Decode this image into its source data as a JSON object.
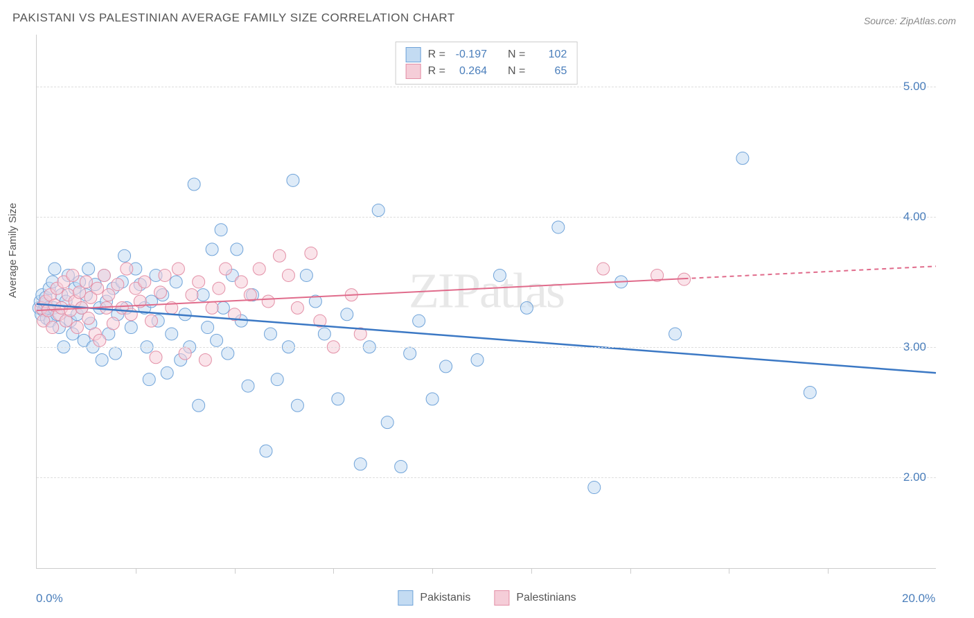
{
  "title": "PAKISTANI VS PALESTINIAN AVERAGE FAMILY SIZE CORRELATION CHART",
  "source": "Source: ZipAtlas.com",
  "watermark": "ZIPatlas",
  "ylabel": "Average Family Size",
  "chart": {
    "type": "scatter",
    "background_color": "#ffffff",
    "grid_color": "#dddddd",
    "axis_color": "#cccccc",
    "label_color": "#555555",
    "tick_label_color": "#4a7ebb",
    "title_fontsize": 17,
    "label_fontsize": 15,
    "tick_fontsize": 17,
    "marker_radius": 9,
    "marker_opacity": 0.55,
    "xlim": [
      0,
      20
    ],
    "ylim": [
      1.3,
      5.4
    ],
    "x_axis_labels": [
      {
        "x": 0,
        "label": "0.0%"
      },
      {
        "x": 20,
        "label": "20.0%"
      }
    ],
    "x_ticks_minor": [
      2.2,
      4.4,
      6.6,
      8.8,
      11.0,
      13.2,
      15.4,
      17.6
    ],
    "y_grid": [
      {
        "y": 2.0,
        "label": "2.00"
      },
      {
        "y": 3.0,
        "label": "3.00"
      },
      {
        "y": 4.0,
        "label": "4.00"
      },
      {
        "y": 5.0,
        "label": "5.00"
      }
    ],
    "series": [
      {
        "name": "Pakistanis",
        "fill": "#c3dbf2",
        "stroke": "#6fa3d9",
        "line_color": "#3b78c4",
        "r_label": "R =",
        "r_value": "-0.197",
        "n_label": "N =",
        "n_value": "102",
        "trend": {
          "x1": 0,
          "y1": 3.33,
          "x2": 20,
          "y2": 2.8,
          "dash_from_x": null
        },
        "points": [
          [
            0.05,
            3.3
          ],
          [
            0.08,
            3.35
          ],
          [
            0.1,
            3.25
          ],
          [
            0.12,
            3.4
          ],
          [
            0.15,
            3.28
          ],
          [
            0.18,
            3.33
          ],
          [
            0.2,
            3.38
          ],
          [
            0.22,
            3.22
          ],
          [
            0.25,
            3.3
          ],
          [
            0.28,
            3.45
          ],
          [
            0.3,
            3.2
          ],
          [
            0.35,
            3.5
          ],
          [
            0.38,
            3.3
          ],
          [
            0.4,
            3.6
          ],
          [
            0.45,
            3.25
          ],
          [
            0.5,
            3.15
          ],
          [
            0.55,
            3.4
          ],
          [
            0.6,
            3.0
          ],
          [
            0.65,
            3.35
          ],
          [
            0.7,
            3.55
          ],
          [
            0.75,
            3.2
          ],
          [
            0.8,
            3.1
          ],
          [
            0.85,
            3.45
          ],
          [
            0.9,
            3.25
          ],
          [
            0.95,
            3.5
          ],
          [
            1.0,
            3.3
          ],
          [
            1.05,
            3.05
          ],
          [
            1.1,
            3.4
          ],
          [
            1.15,
            3.6
          ],
          [
            1.2,
            3.18
          ],
          [
            1.25,
            3.0
          ],
          [
            1.3,
            3.48
          ],
          [
            1.4,
            3.3
          ],
          [
            1.45,
            2.9
          ],
          [
            1.5,
            3.55
          ],
          [
            1.55,
            3.35
          ],
          [
            1.6,
            3.1
          ],
          [
            1.7,
            3.45
          ],
          [
            1.75,
            2.95
          ],
          [
            1.8,
            3.25
          ],
          [
            1.9,
            3.5
          ],
          [
            1.95,
            3.7
          ],
          [
            2.0,
            3.3
          ],
          [
            2.1,
            3.15
          ],
          [
            2.2,
            3.6
          ],
          [
            2.3,
            3.48
          ],
          [
            2.4,
            3.3
          ],
          [
            2.45,
            3.0
          ],
          [
            2.5,
            2.75
          ],
          [
            2.55,
            3.35
          ],
          [
            2.65,
            3.55
          ],
          [
            2.7,
            3.2
          ],
          [
            2.8,
            3.4
          ],
          [
            2.9,
            2.8
          ],
          [
            3.0,
            3.1
          ],
          [
            3.1,
            3.5
          ],
          [
            3.2,
            2.9
          ],
          [
            3.3,
            3.25
          ],
          [
            3.4,
            3.0
          ],
          [
            3.5,
            4.25
          ],
          [
            3.6,
            2.55
          ],
          [
            3.7,
            3.4
          ],
          [
            3.8,
            3.15
          ],
          [
            3.9,
            3.75
          ],
          [
            4.0,
            3.05
          ],
          [
            4.1,
            3.9
          ],
          [
            4.15,
            3.3
          ],
          [
            4.25,
            2.95
          ],
          [
            4.35,
            3.55
          ],
          [
            4.45,
            3.75
          ],
          [
            4.55,
            3.2
          ],
          [
            4.7,
            2.7
          ],
          [
            4.8,
            3.4
          ],
          [
            5.1,
            2.2
          ],
          [
            5.2,
            3.1
          ],
          [
            5.35,
            2.75
          ],
          [
            5.6,
            3.0
          ],
          [
            5.7,
            4.28
          ],
          [
            5.8,
            2.55
          ],
          [
            6.0,
            3.55
          ],
          [
            6.2,
            3.35
          ],
          [
            6.4,
            3.1
          ],
          [
            6.7,
            2.6
          ],
          [
            6.9,
            3.25
          ],
          [
            7.2,
            2.1
          ],
          [
            7.4,
            3.0
          ],
          [
            7.6,
            4.05
          ],
          [
            7.8,
            2.42
          ],
          [
            8.1,
            2.08
          ],
          [
            8.3,
            2.95
          ],
          [
            8.5,
            3.2
          ],
          [
            8.8,
            2.6
          ],
          [
            9.1,
            2.85
          ],
          [
            9.8,
            2.9
          ],
          [
            10.3,
            3.55
          ],
          [
            10.9,
            3.3
          ],
          [
            11.6,
            3.92
          ],
          [
            12.4,
            1.92
          ],
          [
            13.0,
            3.5
          ],
          [
            14.2,
            3.1
          ],
          [
            15.7,
            4.45
          ],
          [
            17.2,
            2.65
          ]
        ]
      },
      {
        "name": "Palestinians",
        "fill": "#f5cdd8",
        "stroke": "#e38fa6",
        "line_color": "#e06b8b",
        "r_label": "R =",
        "r_value": "0.264",
        "n_label": "N =",
        "n_value": "65",
        "trend": {
          "x1": 0,
          "y1": 3.28,
          "x2": 20,
          "y2": 3.62,
          "dash_from_x": 14.4
        },
        "points": [
          [
            0.1,
            3.3
          ],
          [
            0.15,
            3.2
          ],
          [
            0.2,
            3.35
          ],
          [
            0.25,
            3.28
          ],
          [
            0.3,
            3.4
          ],
          [
            0.35,
            3.15
          ],
          [
            0.4,
            3.32
          ],
          [
            0.45,
            3.45
          ],
          [
            0.5,
            3.25
          ],
          [
            0.55,
            3.3
          ],
          [
            0.6,
            3.5
          ],
          [
            0.65,
            3.2
          ],
          [
            0.7,
            3.4
          ],
          [
            0.75,
            3.28
          ],
          [
            0.8,
            3.55
          ],
          [
            0.85,
            3.35
          ],
          [
            0.9,
            3.15
          ],
          [
            0.95,
            3.42
          ],
          [
            1.0,
            3.3
          ],
          [
            1.1,
            3.5
          ],
          [
            1.15,
            3.22
          ],
          [
            1.2,
            3.38
          ],
          [
            1.3,
            3.1
          ],
          [
            1.35,
            3.45
          ],
          [
            1.4,
            3.05
          ],
          [
            1.5,
            3.55
          ],
          [
            1.55,
            3.3
          ],
          [
            1.6,
            3.4
          ],
          [
            1.7,
            3.18
          ],
          [
            1.8,
            3.48
          ],
          [
            1.9,
            3.3
          ],
          [
            2.0,
            3.6
          ],
          [
            2.1,
            3.25
          ],
          [
            2.2,
            3.45
          ],
          [
            2.3,
            3.35
          ],
          [
            2.4,
            3.5
          ],
          [
            2.55,
            3.2
          ],
          [
            2.65,
            2.92
          ],
          [
            2.75,
            3.42
          ],
          [
            2.85,
            3.55
          ],
          [
            3.0,
            3.3
          ],
          [
            3.15,
            3.6
          ],
          [
            3.3,
            2.95
          ],
          [
            3.45,
            3.4
          ],
          [
            3.6,
            3.5
          ],
          [
            3.75,
            2.9
          ],
          [
            3.9,
            3.3
          ],
          [
            4.05,
            3.45
          ],
          [
            4.2,
            3.6
          ],
          [
            4.4,
            3.25
          ],
          [
            4.55,
            3.5
          ],
          [
            4.75,
            3.4
          ],
          [
            4.95,
            3.6
          ],
          [
            5.15,
            3.35
          ],
          [
            5.4,
            3.7
          ],
          [
            5.6,
            3.55
          ],
          [
            5.8,
            3.3
          ],
          [
            6.1,
            3.72
          ],
          [
            6.3,
            3.2
          ],
          [
            6.6,
            3.0
          ],
          [
            7.0,
            3.4
          ],
          [
            7.2,
            3.1
          ],
          [
            12.6,
            3.6
          ],
          [
            13.8,
            3.55
          ],
          [
            14.4,
            3.52
          ]
        ]
      }
    ]
  }
}
